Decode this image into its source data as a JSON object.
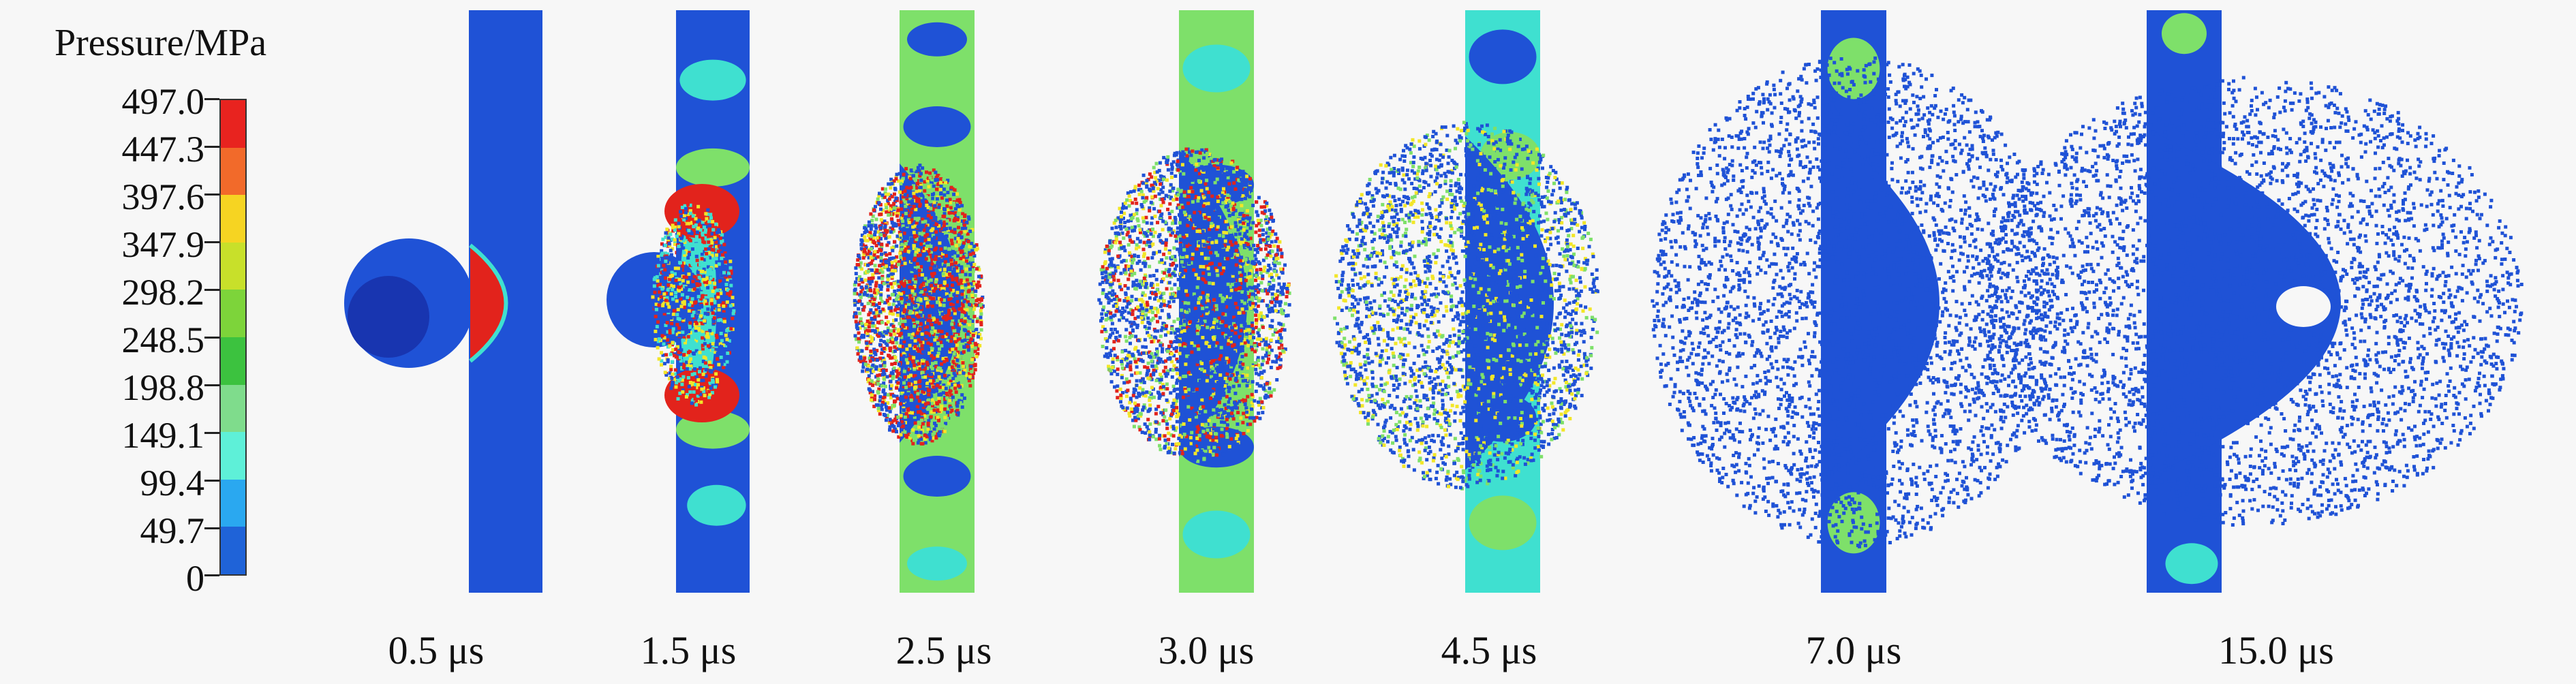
{
  "legend": {
    "title": "Pressure/MPa",
    "ticks": [
      "497.0",
      "447.3",
      "397.6",
      "347.9",
      "298.2",
      "248.5",
      "198.8",
      "149.1",
      "99.4",
      "49.7",
      "0"
    ],
    "colors": [
      "#e8231f",
      "#f26a2a",
      "#f6d422",
      "#c8e02a",
      "#7dd43a",
      "#3cc23f",
      "#7fdc8c",
      "#5ef0d8",
      "#2aa8f0",
      "#1f63d8",
      "#1a3fc8"
    ]
  },
  "frames": [
    {
      "time": "0.5 μs"
    },
    {
      "time": "1.5 μs"
    },
    {
      "time": "2.5 μs"
    },
    {
      "time": "3.0 μs"
    },
    {
      "time": "4.5 μs"
    },
    {
      "time": "7.0 μs"
    },
    {
      "time": "15.0 μs"
    }
  ],
  "palette": {
    "deep_blue": "#1a3fc8",
    "blue": "#1f52d6",
    "cyan": "#3fe0d0",
    "green": "#7ee06a",
    "yellow": "#f2e628",
    "red": "#e2231c"
  }
}
